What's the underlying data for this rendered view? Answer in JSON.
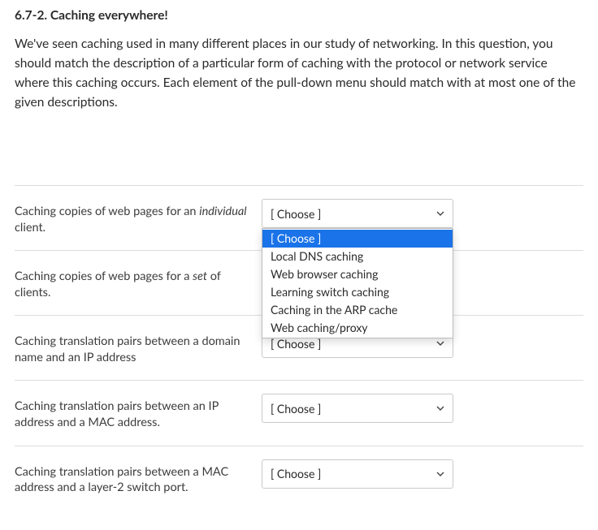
{
  "question": {
    "title": "6.7-2. Caching everywhere!",
    "body": "We've seen caching used in many different places in our study of networking.  In this question, you should match the description of a particular form of caching with the protocol or network service where this caching occurs. Each element of the pull-down menu should match with at most one of the given descriptions."
  },
  "choose_placeholder": "[ Choose ]",
  "dropdown_options": [
    "[ Choose ]",
    "Local DNS caching",
    "Web browser caching",
    "Learning switch caching",
    "Caching in the ARP cache",
    "Web caching/proxy"
  ],
  "rows": {
    "r1": {
      "label_html": "Caching copies of web pages for an <em>individual</em> client.",
      "expanded": true,
      "selected_index": 0
    },
    "r2": {
      "label_html": "Caching copies of web pages for a <em>set</em> of clients.",
      "expanded": false
    },
    "r3": {
      "label_html": "Caching translation pairs between a domain name and an IP address",
      "expanded": false
    },
    "r4": {
      "label_html": "Caching translation pairs between an IP address and a MAC address.",
      "expanded": false
    },
    "r5": {
      "label_html": "Caching translation pairs between a MAC address and a layer-2 switch port.",
      "expanded": false
    }
  },
  "colors": {
    "highlight_bg": "#1a73e8",
    "highlight_fg": "#ffffff",
    "border": "#dddddd",
    "select_border": "#c9c9c9",
    "text": "#2b2b2b"
  }
}
